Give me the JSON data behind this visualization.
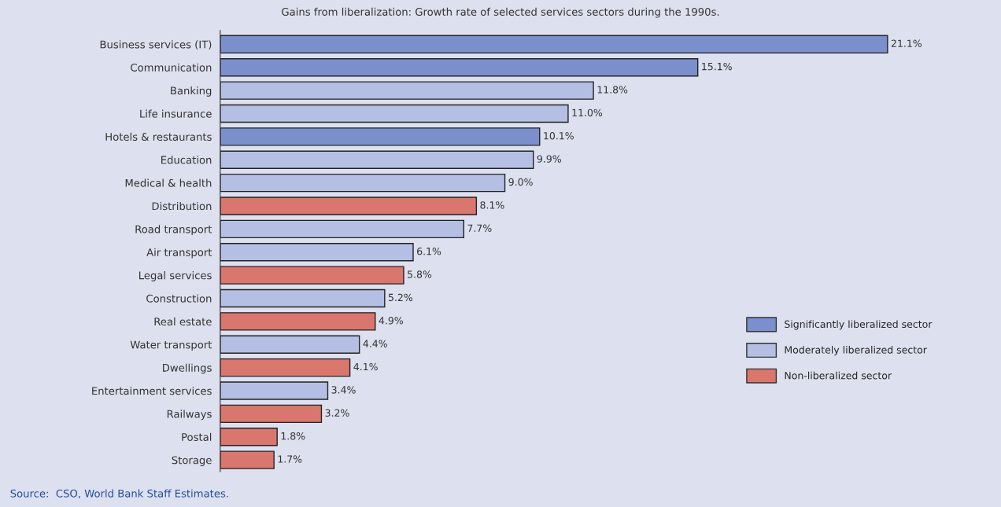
{
  "chart_data": {
    "type": "bar",
    "orientation": "horizontal",
    "title": "Gains from liberalization: Growth rate of selected services sectors during the 1990s.",
    "categories": [
      "Business services (IT)",
      "Communication",
      "Banking",
      "Life insurance",
      "Hotels & restaurants",
      "Education",
      "Medical & health",
      "Distribution",
      "Road transport",
      "Air transport",
      "Legal services",
      "Construction",
      "Real estate",
      "Water transport",
      "Dwellings",
      "Entertainment services",
      "Railways",
      "Postal",
      "Storage"
    ],
    "series": [
      {
        "name": "Significantly liberalized sector",
        "color": "#7b8fcc",
        "values": [
          21.1,
          15.1,
          null,
          null,
          10.1,
          null,
          null,
          null,
          null,
          null,
          null,
          null,
          null,
          null,
          null,
          null,
          null,
          null,
          null
        ],
        "value_labels": [
          "21.1%",
          "15.1%",
          null,
          null,
          "10.1%",
          null,
          null,
          null,
          null,
          null,
          null,
          null,
          null,
          null,
          null,
          null,
          null,
          null,
          null
        ]
      },
      {
        "name": "Moderately liberalized sector",
        "color": "#b4bfe3",
        "values": [
          null,
          null,
          11.8,
          11.0,
          null,
          9.9,
          9.0,
          null,
          7.7,
          6.1,
          null,
          5.2,
          null,
          4.4,
          null,
          3.4,
          null,
          null,
          null
        ],
        "value_labels": [
          null,
          null,
          "11.8%",
          "11.0%",
          null,
          "9.9%",
          "9.0%",
          null,
          "7.7%",
          "6.1%",
          null,
          "5.2%",
          null,
          "4.4%",
          null,
          "3.4%",
          null,
          null,
          null
        ]
      },
      {
        "name": "Non-liberalized sector",
        "color": "#d9766e",
        "values": [
          null,
          null,
          null,
          null,
          null,
          null,
          null,
          8.1,
          null,
          null,
          5.8,
          null,
          4.9,
          null,
          4.1,
          null,
          3.2,
          1.8,
          1.7
        ],
        "value_labels": [
          null,
          null,
          null,
          null,
          null,
          null,
          null,
          "8.1%",
          null,
          null,
          "5.8%",
          null,
          "4.9%",
          null,
          "4.1%",
          null,
          "3.2%",
          "1.8%",
          "1.7%"
        ]
      }
    ],
    "legend": "right",
    "grid": false,
    "annotations": [
      "Source:  CSO, World Bank Staff Estimates."
    ]
  }
}
